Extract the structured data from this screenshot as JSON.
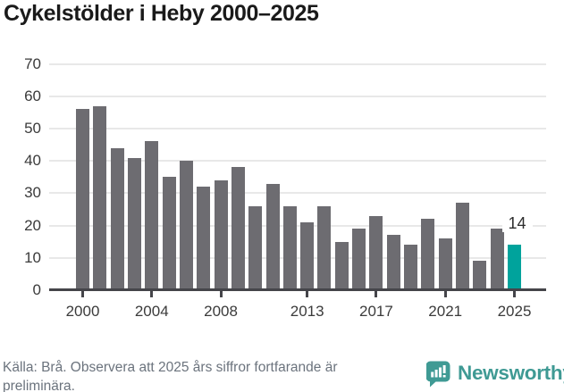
{
  "title": "Cykelstölder i Heby 2000–2025",
  "chart_data": {
    "type": "bar",
    "x": [
      2000,
      2001,
      2002,
      2003,
      2004,
      2005,
      2006,
      2007,
      2008,
      2009,
      2010,
      2011,
      2012,
      2013,
      2014,
      2015,
      2016,
      2017,
      2018,
      2019,
      2020,
      2021,
      2022,
      2023,
      2024,
      2025
    ],
    "values": [
      56,
      57,
      44,
      41,
      46,
      35,
      40,
      32,
      34,
      38,
      26,
      33,
      26,
      21,
      26,
      15,
      19,
      23,
      17,
      14,
      22,
      16,
      27,
      9,
      19,
      14
    ],
    "title": "Cykelstölder i Heby 2000–2025",
    "xlabel": "",
    "ylabel": "",
    "ylim": [
      0,
      70
    ],
    "y_ticks": [
      0,
      10,
      20,
      30,
      40,
      50,
      60,
      70
    ],
    "x_tick_labels": [
      "2000",
      "2004",
      "2008",
      "2013",
      "2017",
      "2021",
      "2025"
    ],
    "grid": true,
    "legend": "none",
    "bar_color": "#6d6c71",
    "highlight_year": 2025,
    "highlight_color": "#00a39c",
    "annotation": {
      "year": 2025,
      "text": "14"
    }
  },
  "footer": {
    "source_note": "Källa: Brå. Observera att 2025 års siffror fortfarande är preliminära.",
    "brand_name": "Newsworthy",
    "brand_color": "#3f9a94",
    "brand_icon": "speech-bubble-bar-chart-icon"
  }
}
